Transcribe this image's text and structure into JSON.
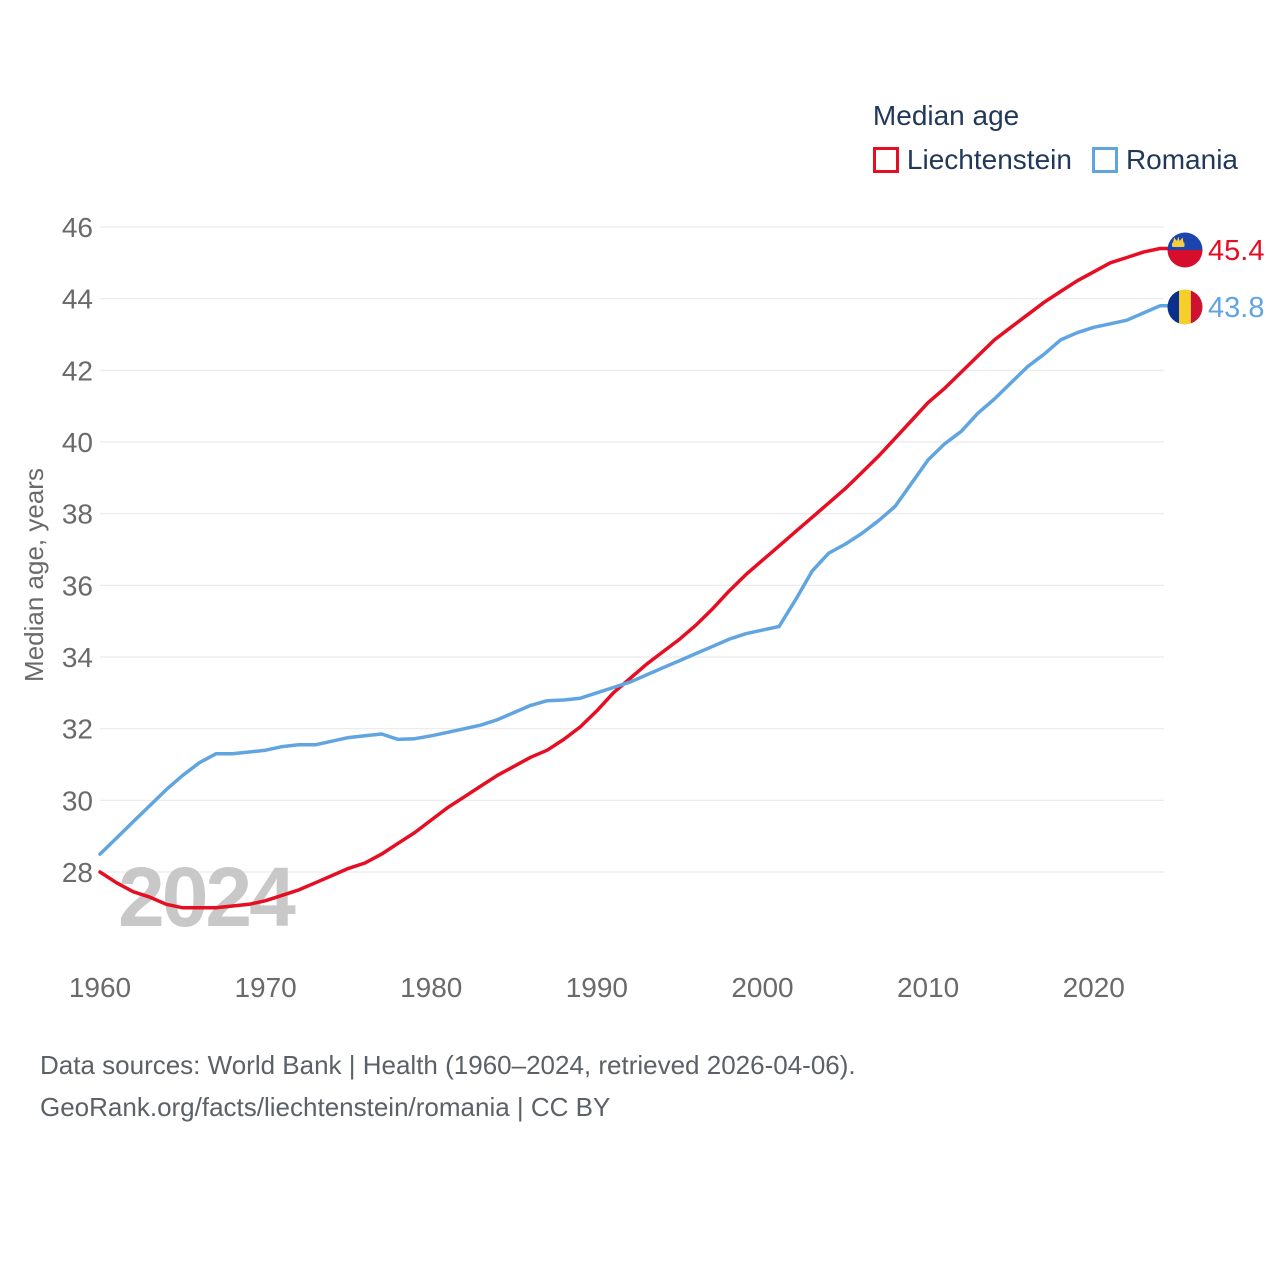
{
  "legend": {
    "title": "Median age",
    "items": [
      {
        "label": "Liechtenstein",
        "color": "#e60e23"
      },
      {
        "label": "Romania",
        "color": "#61a5e0"
      }
    ]
  },
  "watermark": "2024",
  "y_axis": {
    "title": "Median age, years",
    "ticks": [
      46,
      44,
      42,
      40,
      38,
      36,
      34,
      32,
      30,
      28
    ]
  },
  "x_axis": {
    "ticks": [
      1960,
      1970,
      1980,
      1990,
      2000,
      2010,
      2020
    ]
  },
  "footer": {
    "line1": "Data sources: World Bank | Health (1960–2024, retrieved 2026-04-06).",
    "line2": "GeoRank.org/facts/liechtenstein/romania | CC BY"
  },
  "chart_data": {
    "type": "line",
    "title": "Median age",
    "xlabel": "",
    "ylabel": "Median age, years",
    "x_range": [
      1960,
      2024
    ],
    "ylim": [
      26.5,
      46.5
    ],
    "y_gridlines": [
      28,
      30,
      32,
      34,
      36,
      38,
      40,
      42,
      44,
      46
    ],
    "grid": true,
    "legend_position": "top-right",
    "x": [
      1960,
      1961,
      1962,
      1963,
      1964,
      1965,
      1966,
      1967,
      1968,
      1969,
      1970,
      1971,
      1972,
      1973,
      1974,
      1975,
      1976,
      1977,
      1978,
      1979,
      1980,
      1981,
      1982,
      1983,
      1984,
      1985,
      1986,
      1987,
      1988,
      1989,
      1990,
      1991,
      1992,
      1993,
      1994,
      1995,
      1996,
      1997,
      1998,
      1999,
      2000,
      2001,
      2002,
      2003,
      2004,
      2005,
      2006,
      2007,
      2008,
      2009,
      2010,
      2011,
      2012,
      2013,
      2014,
      2015,
      2016,
      2017,
      2018,
      2019,
      2020,
      2021,
      2022,
      2023,
      2024
    ],
    "series": [
      {
        "name": "Liechtenstein",
        "color": "#e60e23",
        "end_label": "45.4",
        "flag": "liechtenstein",
        "values": [
          28.0,
          27.7,
          27.45,
          27.3,
          27.1,
          27.0,
          27.0,
          27.0,
          27.05,
          27.1,
          27.2,
          27.35,
          27.5,
          27.7,
          27.9,
          28.1,
          28.25,
          28.5,
          28.8,
          29.1,
          29.45,
          29.8,
          30.1,
          30.4,
          30.7,
          30.95,
          31.2,
          31.4,
          31.7,
          32.05,
          32.5,
          33.0,
          33.4,
          33.8,
          34.15,
          34.5,
          34.9,
          35.35,
          35.85,
          36.3,
          36.7,
          37.1,
          37.5,
          37.9,
          38.3,
          38.7,
          39.15,
          39.6,
          40.1,
          40.6,
          41.1,
          41.5,
          41.95,
          42.4,
          42.85,
          43.2,
          43.55,
          43.9,
          44.2,
          44.5,
          44.75,
          45.0,
          45.15,
          45.3,
          45.4
        ]
      },
      {
        "name": "Romania",
        "color": "#61a5e0",
        "end_label": "43.8",
        "flag": "romania",
        "values": [
          28.5,
          28.95,
          29.4,
          29.85,
          30.3,
          30.7,
          31.05,
          31.3,
          31.3,
          31.35,
          31.4,
          31.5,
          31.55,
          31.55,
          31.65,
          31.75,
          31.8,
          31.85,
          31.7,
          31.72,
          31.8,
          31.9,
          32.0,
          32.1,
          32.25,
          32.45,
          32.65,
          32.78,
          32.8,
          32.85,
          33.0,
          33.15,
          33.3,
          33.5,
          33.7,
          33.9,
          34.1,
          34.3,
          34.5,
          34.65,
          34.75,
          34.85,
          35.6,
          36.4,
          36.9,
          37.15,
          37.45,
          37.8,
          38.2,
          38.85,
          39.5,
          39.95,
          40.3,
          40.8,
          41.2,
          41.65,
          42.1,
          42.45,
          42.85,
          43.05,
          43.2,
          43.3,
          43.4,
          43.6,
          43.8
        ]
      }
    ]
  }
}
